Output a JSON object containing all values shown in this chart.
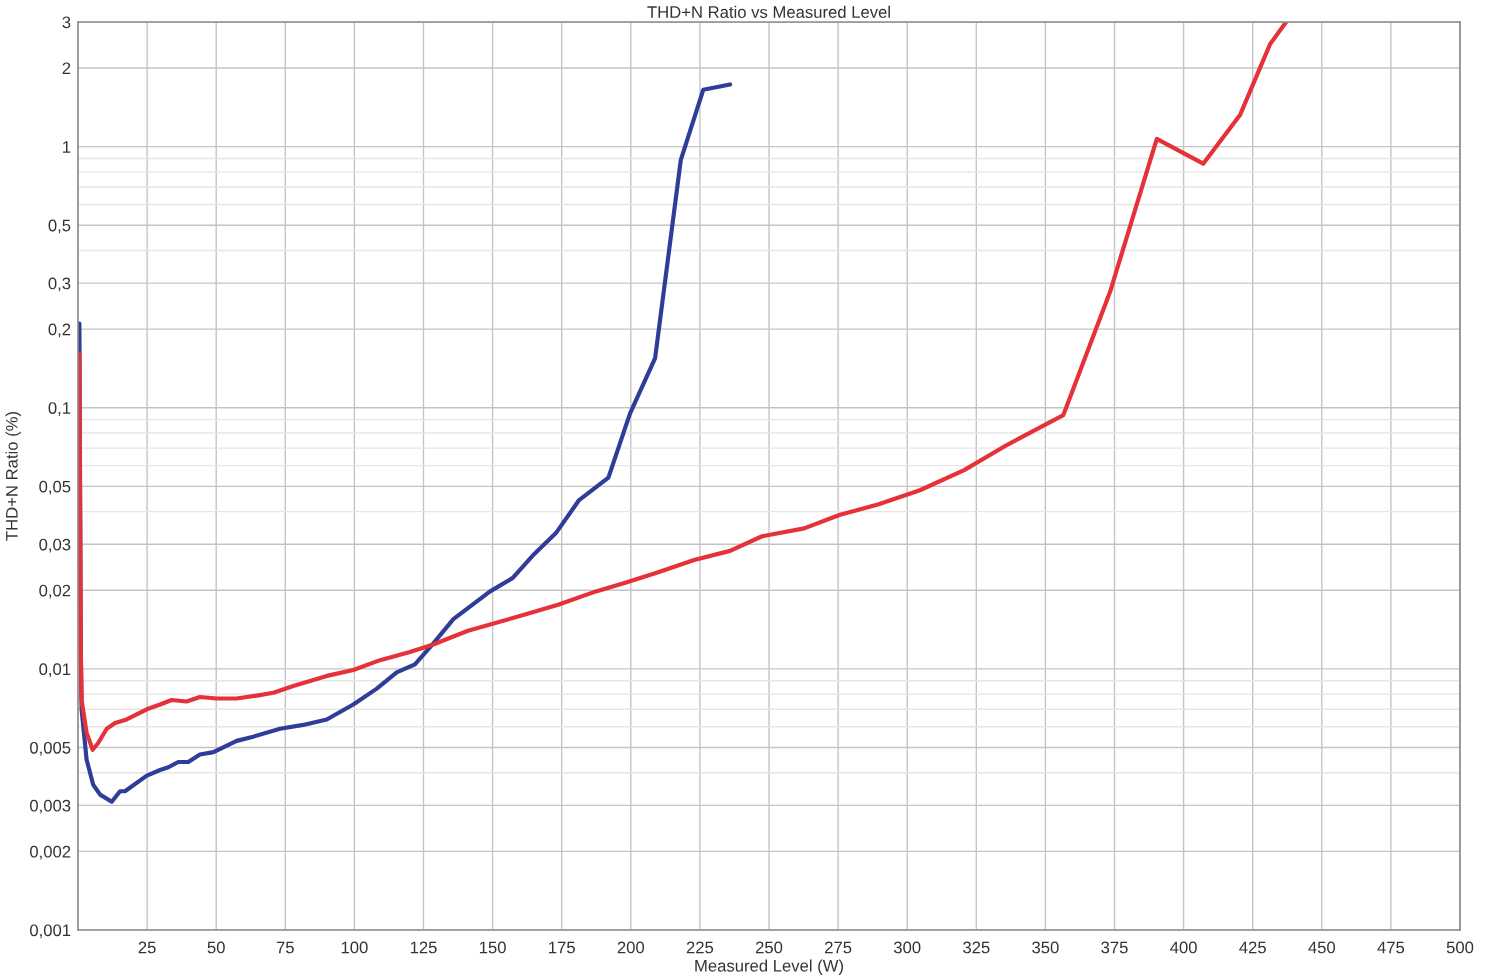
{
  "chart_data": {
    "type": "line",
    "title": "THD+N Ratio vs Measured Level",
    "xlabel": "Measured Level (W)",
    "ylabel": "THD+N Ratio (%)",
    "log": "y",
    "grid": true,
    "xlim": [
      0,
      500
    ],
    "xticks": [
      25,
      50,
      75,
      100,
      125,
      150,
      175,
      200,
      225,
      250,
      275,
      300,
      325,
      350,
      375,
      400,
      425,
      450,
      475,
      500
    ],
    "ylim": [
      0.001,
      3
    ],
    "yticks": [
      {
        "value": 0.001,
        "label": "0,001"
      },
      {
        "value": 0.002,
        "label": "0,002"
      },
      {
        "value": 0.003,
        "label": "0,003"
      },
      {
        "value": 0.004,
        "label": null
      },
      {
        "value": 0.005,
        "label": "0,005"
      },
      {
        "value": 0.006,
        "label": null
      },
      {
        "value": 0.007,
        "label": null
      },
      {
        "value": 0.008,
        "label": null
      },
      {
        "value": 0.009,
        "label": null
      },
      {
        "value": 0.01,
        "label": "0,01"
      },
      {
        "value": 0.02,
        "label": "0,02"
      },
      {
        "value": 0.03,
        "label": "0,03"
      },
      {
        "value": 0.04,
        "label": null
      },
      {
        "value": 0.05,
        "label": "0,05"
      },
      {
        "value": 0.06,
        "label": null
      },
      {
        "value": 0.07,
        "label": null
      },
      {
        "value": 0.08,
        "label": null
      },
      {
        "value": 0.09,
        "label": null
      },
      {
        "value": 0.1,
        "label": "0,1"
      },
      {
        "value": 0.2,
        "label": "0,2"
      },
      {
        "value": 0.3,
        "label": "0,3"
      },
      {
        "value": 0.4,
        "label": null
      },
      {
        "value": 0.5,
        "label": "0,5"
      },
      {
        "value": 0.6,
        "label": null
      },
      {
        "value": 0.7,
        "label": null
      },
      {
        "value": 0.8,
        "label": null
      },
      {
        "value": 0.9,
        "label": null
      },
      1,
      2,
      3
    ],
    "series": [
      {
        "color": "#2f3d99",
        "x": [
          0.5,
          1.0,
          1.3,
          3.1,
          5.5,
          8,
          12.2,
          15.2,
          17,
          24.9,
          29.7,
          32.7,
          36.3,
          39.9,
          44.1,
          49,
          57.4,
          63.4,
          73.1,
          81.5,
          90,
          99.6,
          108.1,
          115.3,
          121.9,
          128.5,
          135.8,
          149.1,
          157.3,
          165,
          172.9,
          181.3,
          191.9,
          199.7,
          208.8,
          218.1,
          226.2,
          235.9
        ],
        "values": [
          0.21,
          0.012,
          0.007,
          0.0045,
          0.0036,
          0.0033,
          0.0031,
          0.0034,
          0.0034,
          0.0039,
          0.0041,
          0.0042,
          0.0044,
          0.0044,
          0.0047,
          0.0048,
          0.0053,
          0.0055,
          0.0059,
          0.0061,
          0.0064,
          0.0073,
          0.0084,
          0.0097,
          0.0104,
          0.0125,
          0.0155,
          0.0198,
          0.0223,
          0.0275,
          0.0331,
          0.0443,
          0.054,
          0.095,
          0.155,
          0.89,
          1.65,
          1.73
        ]
      },
      {
        "color": "#e53238",
        "x": [
          0.5,
          1.0,
          1.3,
          3.1,
          5.3,
          7.3,
          10.4,
          13.4,
          17.6,
          24.9,
          29.7,
          33.9,
          39.3,
          44.1,
          50.2,
          57.4,
          64.7,
          70.7,
          77.9,
          90,
          99.6,
          109.3,
          120.1,
          128.5,
          141.1,
          161.4,
          173.7,
          187.4,
          198.3,
          209.1,
          222.9,
          235.9,
          247.5,
          262.7,
          275.7,
          289.4,
          304.6,
          320.6,
          336.2,
          356.5,
          373.4,
          390.3,
          407.1,
          420.4,
          431.3,
          437.1
        ],
        "values": [
          0.16,
          0.012,
          0.0076,
          0.0057,
          0.0049,
          0.0052,
          0.0059,
          0.0062,
          0.0064,
          0.007,
          0.0073,
          0.0076,
          0.0075,
          0.0078,
          0.0077,
          0.0077,
          0.0079,
          0.0081,
          0.0086,
          0.0094,
          0.0099,
          0.0108,
          0.0116,
          0.0124,
          0.014,
          0.0161,
          0.0176,
          0.0198,
          0.0214,
          0.0233,
          0.0261,
          0.0283,
          0.0322,
          0.0345,
          0.0389,
          0.0426,
          0.0483,
          0.0577,
          0.0721,
          0.0937,
          0.278,
          1.07,
          0.86,
          1.32,
          2.47,
          3
        ]
      }
    ]
  }
}
